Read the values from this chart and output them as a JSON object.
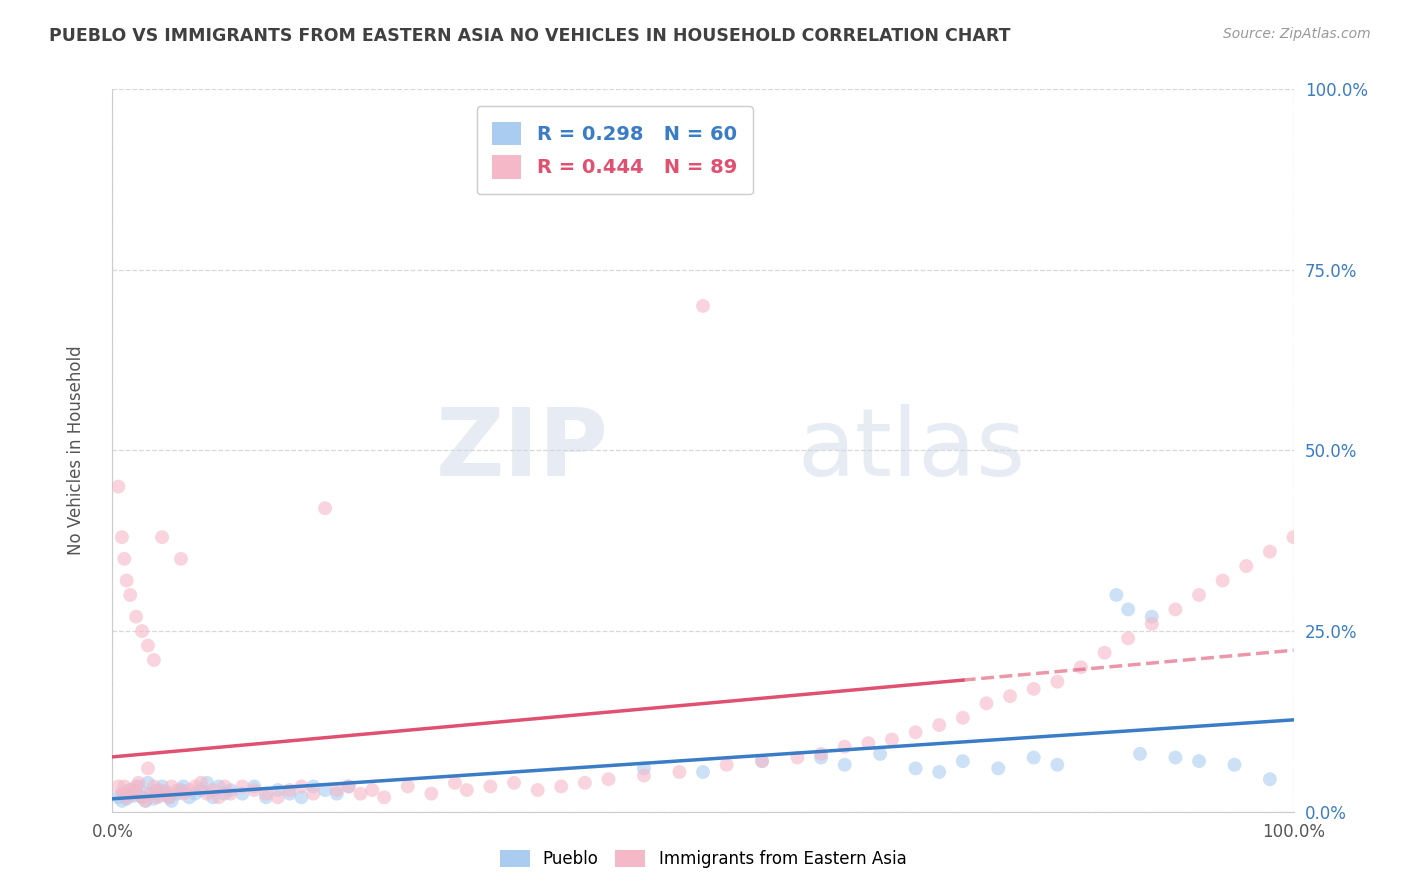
{
  "title": "PUEBLO VS IMMIGRANTS FROM EASTERN ASIA NO VEHICLES IN HOUSEHOLD CORRELATION CHART",
  "source": "Source: ZipAtlas.com",
  "ylabel": "No Vehicles in Household",
  "xlim": [
    0,
    1.0
  ],
  "ylim": [
    0,
    1.0
  ],
  "xtick_positions": [
    0.0,
    1.0
  ],
  "xticklabels": [
    "0.0%",
    "100.0%"
  ],
  "ytick_positions": [
    0.0,
    0.25,
    0.5,
    0.75,
    1.0
  ],
  "yticklabels_left": [
    "",
    "",
    "",
    "",
    ""
  ],
  "yticklabels_right": [
    "0.0%",
    "25.0%",
    "50.0%",
    "75.0%",
    "100.0%"
  ],
  "series1_label": "Pueblo",
  "series1_color": "#aaccf0",
  "series1_R": 0.298,
  "series1_N": 60,
  "series1_trend_color": "#3a7cc5",
  "series2_label": "Immigrants from Eastern Asia",
  "series2_color": "#f5b8c8",
  "series2_R": 0.444,
  "series2_N": 89,
  "series2_trend_color": "#e05070",
  "watermark_text": "ZIPatlas",
  "background_color": "#ffffff",
  "grid_color": "#d8d8d8",
  "title_color": "#404040",
  "series1_x": [
    0.005,
    0.008,
    0.01,
    0.012,
    0.015,
    0.018,
    0.02,
    0.022,
    0.025,
    0.028,
    0.03,
    0.032,
    0.035,
    0.038,
    0.04,
    0.042,
    0.045,
    0.048,
    0.05,
    0.055,
    0.058,
    0.06,
    0.065,
    0.07,
    0.075,
    0.08,
    0.085,
    0.09,
    0.095,
    0.1,
    0.11,
    0.12,
    0.13,
    0.14,
    0.15,
    0.16,
    0.17,
    0.18,
    0.19,
    0.2,
    0.45,
    0.5,
    0.55,
    0.6,
    0.62,
    0.65,
    0.68,
    0.7,
    0.72,
    0.75,
    0.78,
    0.8,
    0.85,
    0.86,
    0.87,
    0.88,
    0.9,
    0.92,
    0.95,
    0.98
  ],
  "series1_y": [
    0.02,
    0.015,
    0.025,
    0.018,
    0.03,
    0.022,
    0.028,
    0.035,
    0.02,
    0.015,
    0.04,
    0.025,
    0.018,
    0.03,
    0.022,
    0.035,
    0.028,
    0.02,
    0.015,
    0.025,
    0.03,
    0.035,
    0.02,
    0.025,
    0.03,
    0.04,
    0.02,
    0.035,
    0.025,
    0.03,
    0.025,
    0.035,
    0.02,
    0.03,
    0.025,
    0.02,
    0.035,
    0.03,
    0.025,
    0.035,
    0.06,
    0.055,
    0.07,
    0.075,
    0.065,
    0.08,
    0.06,
    0.055,
    0.07,
    0.06,
    0.075,
    0.065,
    0.3,
    0.28,
    0.08,
    0.27,
    0.075,
    0.07,
    0.065,
    0.045
  ],
  "series2_x": [
    0.005,
    0.008,
    0.01,
    0.012,
    0.015,
    0.018,
    0.02,
    0.022,
    0.025,
    0.028,
    0.03,
    0.032,
    0.035,
    0.038,
    0.04,
    0.042,
    0.045,
    0.048,
    0.05,
    0.055,
    0.058,
    0.06,
    0.065,
    0.07,
    0.075,
    0.08,
    0.085,
    0.09,
    0.095,
    0.1,
    0.11,
    0.12,
    0.13,
    0.14,
    0.15,
    0.16,
    0.17,
    0.18,
    0.19,
    0.2,
    0.21,
    0.22,
    0.23,
    0.25,
    0.27,
    0.29,
    0.3,
    0.32,
    0.34,
    0.36,
    0.38,
    0.4,
    0.42,
    0.45,
    0.48,
    0.5,
    0.52,
    0.55,
    0.58,
    0.6,
    0.62,
    0.64,
    0.66,
    0.68,
    0.7,
    0.72,
    0.74,
    0.76,
    0.78,
    0.8,
    0.82,
    0.84,
    0.86,
    0.88,
    0.9,
    0.92,
    0.94,
    0.96,
    0.98,
    1.0,
    0.005,
    0.008,
    0.01,
    0.012,
    0.015,
    0.02,
    0.025,
    0.03,
    0.035
  ],
  "series2_y": [
    0.45,
    0.025,
    0.035,
    0.02,
    0.03,
    0.025,
    0.035,
    0.04,
    0.02,
    0.015,
    0.06,
    0.025,
    0.035,
    0.02,
    0.03,
    0.38,
    0.025,
    0.02,
    0.035,
    0.03,
    0.35,
    0.025,
    0.03,
    0.035,
    0.04,
    0.025,
    0.03,
    0.02,
    0.035,
    0.025,
    0.035,
    0.03,
    0.025,
    0.02,
    0.03,
    0.035,
    0.025,
    0.42,
    0.03,
    0.035,
    0.025,
    0.03,
    0.02,
    0.035,
    0.025,
    0.04,
    0.03,
    0.035,
    0.04,
    0.03,
    0.035,
    0.04,
    0.045,
    0.05,
    0.055,
    0.7,
    0.065,
    0.07,
    0.075,
    0.08,
    0.09,
    0.095,
    0.1,
    0.11,
    0.12,
    0.13,
    0.15,
    0.16,
    0.17,
    0.18,
    0.2,
    0.22,
    0.24,
    0.26,
    0.28,
    0.3,
    0.32,
    0.34,
    0.36,
    0.38,
    0.035,
    0.38,
    0.35,
    0.32,
    0.3,
    0.27,
    0.25,
    0.23,
    0.21
  ]
}
